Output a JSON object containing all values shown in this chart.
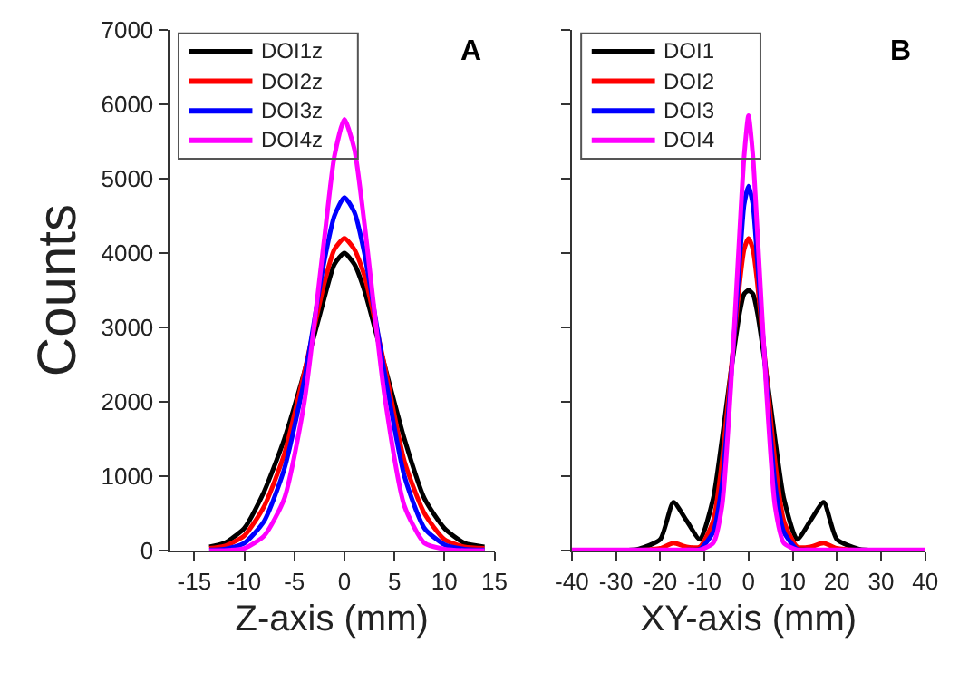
{
  "chart_data": [
    {
      "type": "line",
      "title": "A",
      "xlabel": "Z-axis (mm)",
      "ylabel": "Counts",
      "x": [
        -13.5,
        -12,
        -10,
        -8,
        -6,
        -4,
        -2,
        -1,
        0,
        1,
        2,
        4,
        6,
        8,
        10,
        12,
        14
      ],
      "series": [
        {
          "name": "DOI1z",
          "color": "#000000",
          "values": [
            50,
            100,
            300,
            800,
            1500,
            2400,
            3400,
            3850,
            4000,
            3850,
            3500,
            2500,
            1500,
            700,
            300,
            100,
            50
          ]
        },
        {
          "name": "DOI2z",
          "color": "#ff0000",
          "values": [
            30,
            60,
            200,
            600,
            1300,
            2400,
            3600,
            4050,
            4200,
            4050,
            3700,
            2500,
            1200,
            500,
            150,
            50,
            30
          ]
        },
        {
          "name": "DOI3z",
          "color": "#0000ff",
          "values": [
            10,
            20,
            100,
            400,
            1100,
            2300,
            3900,
            4500,
            4750,
            4550,
            4000,
            2400,
            1000,
            300,
            80,
            20,
            10
          ]
        },
        {
          "name": "DOI4z",
          "color": "#ff00ff",
          "values": [
            0,
            0,
            30,
            200,
            700,
            2000,
            4200,
            5300,
            5800,
            5400,
            4400,
            2100,
            600,
            100,
            20,
            0,
            0
          ]
        }
      ],
      "xlim": [
        -17.5,
        15
      ],
      "ylim": [
        0,
        7000
      ],
      "xticks": [
        -15,
        -10,
        -5,
        0,
        5,
        10,
        15
      ],
      "yticks": [
        0,
        1000,
        2000,
        3000,
        4000,
        5000,
        6000,
        7000
      ],
      "legend": "top left"
    },
    {
      "type": "line",
      "title": "B",
      "xlabel": "XY-axis (mm)",
      "x": [
        -40,
        -30,
        -25,
        -20,
        -17,
        -14,
        -11,
        -8,
        -6,
        -4,
        -2,
        -1,
        0,
        1,
        2,
        4,
        6,
        8,
        11,
        14,
        17,
        20,
        25,
        30,
        40
      ],
      "series": [
        {
          "name": "DOI1",
          "color": "#000000",
          "values": [
            0,
            0,
            20,
            150,
            650,
            400,
            150,
            700,
            1500,
            2400,
            3200,
            3450,
            3500,
            3450,
            3200,
            2400,
            1500,
            700,
            150,
            400,
            650,
            150,
            20,
            0,
            0
          ]
        },
        {
          "name": "DOI2",
          "color": "#ff0000",
          "values": [
            null,
            null,
            0,
            30,
            100,
            50,
            50,
            400,
            1200,
            2400,
            3600,
            4050,
            4200,
            4050,
            3600,
            2400,
            1200,
            400,
            50,
            50,
            100,
            30,
            0,
            null,
            null
          ]
        },
        {
          "name": "DOI3",
          "color": "#0000ff",
          "values": [
            null,
            null,
            null,
            null,
            null,
            10,
            20,
            250,
            900,
            2300,
            3900,
            4650,
            4900,
            4650,
            3900,
            2300,
            900,
            250,
            20,
            10,
            null,
            null,
            null,
            null,
            null
          ]
        },
        {
          "name": "DOI4",
          "color": "#ff00ff",
          "values": [
            10,
            10,
            10,
            10,
            10,
            10,
            10,
            100,
            600,
            2200,
            4300,
            5300,
            5850,
            5300,
            4300,
            2200,
            600,
            100,
            10,
            10,
            10,
            10,
            10,
            10,
            10
          ]
        }
      ],
      "xlim": [
        -40,
        40
      ],
      "ylim": [
        0,
        7000
      ],
      "xticks": [
        -40,
        -30,
        -20,
        -10,
        0,
        10,
        20,
        30,
        40
      ],
      "yticks": [
        0,
        1000,
        2000,
        3000,
        4000,
        5000,
        6000,
        7000
      ],
      "legend": "top left",
      "tick_labels": "x"
    }
  ]
}
